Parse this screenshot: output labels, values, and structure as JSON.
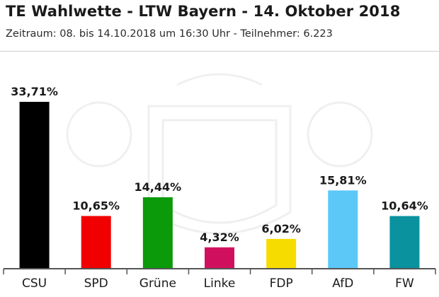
{
  "header": {
    "title": "TE Wahlwette - LTW Bayern - 14. Oktober 2018",
    "subtitle": "Zeitraum: 08. bis 14.10.2018 um 16:30 Uhr - Teilnehmer: 6.223"
  },
  "chart_data": {
    "type": "bar",
    "title": "TE Wahlwette - LTW Bayern - 14. Oktober 2018",
    "subtitle": "Zeitraum: 08. bis 14.10.2018 um 16:30 Uhr - Teilnehmer: 6.223",
    "categories": [
      "CSU",
      "SPD",
      "Grüne",
      "Linke",
      "FDP",
      "AfD",
      "FW"
    ],
    "values": [
      33.71,
      10.65,
      14.44,
      4.32,
      6.02,
      15.81,
      10.64
    ],
    "value_labels": [
      "33,71%",
      "10,65%",
      "14,44%",
      "4,32%",
      "6,02%",
      "15,81%",
      "10,64%"
    ],
    "colors": [
      "#000000",
      "#f00000",
      "#0a9a0a",
      "#d0105e",
      "#f7dc00",
      "#5bc8f8",
      "#0a929e"
    ],
    "xlabel": "",
    "ylabel": "",
    "grid": false
  }
}
